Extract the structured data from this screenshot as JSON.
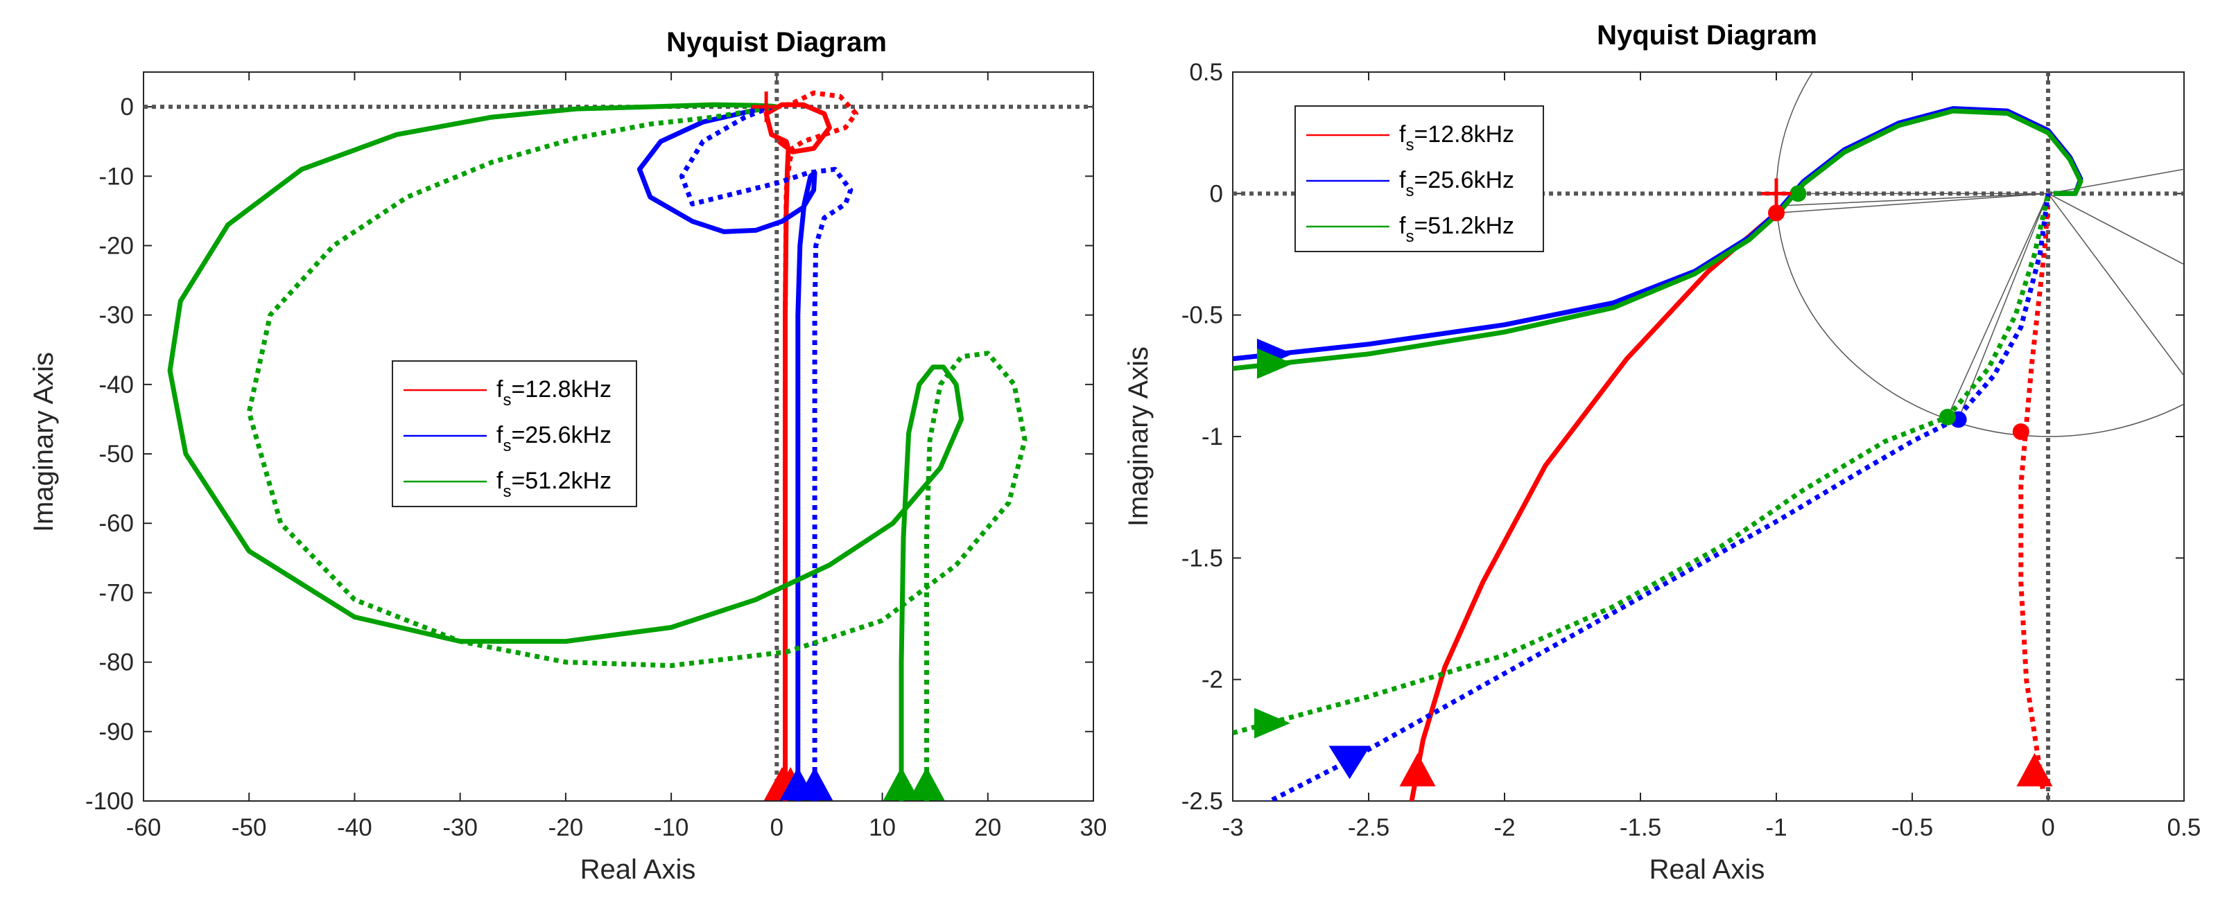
{
  "chart_data": [
    {
      "type": "line",
      "title": "Nyquist Diagram",
      "xlabel": "Real Axis",
      "ylabel": "Imaginary Axis",
      "xlim": [
        -60,
        30
      ],
      "ylim": [
        -100,
        5
      ],
      "xticks": [
        -60,
        -50,
        -40,
        -30,
        -20,
        -10,
        0,
        10,
        20,
        30
      ],
      "yticks": [
        0,
        -10,
        -20,
        -30,
        -40,
        -50,
        -60,
        -70,
        -80,
        -90,
        -100
      ],
      "xtick_labels": [
        "-60",
        "-50",
        "-40",
        "-30",
        "-20",
        "-10",
        "0",
        "10",
        "20",
        "30"
      ],
      "ytick_labels": [
        "0",
        "-10",
        "-20",
        "-30",
        "-40",
        "-50",
        "-60",
        "-70",
        "-80",
        "-90",
        "-100"
      ],
      "grid": false,
      "legend_placement": "center",
      "legend": [
        {
          "label_main": "f",
          "label_sub": "s",
          "label_rest": "=12.8kHz",
          "color": "#ff0000"
        },
        {
          "label_main": "f",
          "label_sub": "s",
          "label_rest": "=25.6kHz",
          "color": "#0000ff"
        },
        {
          "label_main": "f",
          "label_sub": "s",
          "label_rest": "=51.2kHz",
          "color": "#00a000"
        }
      ],
      "critical_point": [
        -1,
        0
      ],
      "series": [
        {
          "color": "#ff0000",
          "style": "solid",
          "x": [
            0.8,
            0.8,
            0.8,
            0.9,
            1.0,
            1.1,
            0.9,
            -0.5,
            -1.0,
            0.5,
            2.5,
            4.5,
            5.0,
            3.5,
            1.5,
            0.2
          ],
          "y": [
            -100,
            -60,
            -30,
            -15,
            -9,
            -6,
            -5,
            -4,
            -1,
            0.3,
            0.3,
            -1,
            -3,
            -6,
            -6.5,
            -5
          ]
        },
        {
          "color": "#ff0000",
          "style": "dotted",
          "x": [
            0.8,
            0.8,
            0.8,
            0.9,
            1.2,
            1.5,
            2.5,
            4.5,
            6.5,
            7.5,
            6.0,
            3.5,
            1.5,
            0.2
          ],
          "y": [
            -100,
            -60,
            -30,
            -12,
            -8,
            -6,
            -5,
            -4,
            -3,
            -1,
            1.5,
            2,
            0.5,
            0
          ]
        },
        {
          "color": "#0000ff",
          "style": "solid",
          "x": [
            2.0,
            2.0,
            2.0,
            2.2,
            2.6,
            3.2,
            3.6,
            3.5,
            2.5,
            0.5,
            -2,
            -5,
            -8,
            -12,
            -13,
            -11,
            -7,
            -3,
            -0.5
          ],
          "y": [
            -100,
            -60,
            -30,
            -20,
            -14,
            -10,
            -9.5,
            -12,
            -14.5,
            -16.5,
            -17.8,
            -18,
            -16.5,
            -13,
            -9,
            -5,
            -2.2,
            -0.8,
            0
          ]
        },
        {
          "color": "#0000ff",
          "style": "dotted",
          "x": [
            3.6,
            3.6,
            3.6,
            3.7,
            4.5,
            6.5,
            7.0,
            5.5,
            3.0,
            0,
            -4,
            -8,
            -9,
            -7,
            -3,
            -0.5
          ],
          "y": [
            -100,
            -60,
            -30,
            -20,
            -16,
            -14,
            -12,
            -9,
            -9.5,
            -11,
            -12.5,
            -14,
            -10,
            -5,
            -1.5,
            0
          ]
        },
        {
          "color": "#00a000",
          "style": "solid",
          "x": [
            11.8,
            11.8,
            12.0,
            12.5,
            13.5,
            14.8,
            15.8,
            17.0,
            17.5,
            15.5,
            11.0,
            5.0,
            -2.0,
            -10,
            -20,
            -30,
            -40,
            -50,
            -56,
            -57.5,
            -56.5,
            -52,
            -45,
            -36,
            -27,
            -19,
            -12,
            -6,
            -2,
            -0.5,
            0
          ],
          "y": [
            -100,
            -80,
            -62,
            -47,
            -40,
            -37.5,
            -37.5,
            -40,
            -45,
            -52,
            -60,
            -66,
            -71,
            -75,
            -77,
            -77,
            -73.5,
            -64,
            -50,
            -38,
            -28,
            -17,
            -9,
            -4,
            -1.5,
            -0.3,
            0,
            0.3,
            0.2,
            0.1,
            0
          ]
        },
        {
          "color": "#00a000",
          "style": "dotted",
          "x": [
            14.2,
            14.2,
            14.2,
            14.5,
            15.5,
            17.5,
            20.0,
            22.5,
            23.5,
            22.0,
            17.0,
            10.0,
            1.0,
            -10,
            -20,
            -30,
            -40,
            -47,
            -50,
            -48,
            -42,
            -35,
            -27,
            -19,
            -12,
            -6,
            -2,
            0
          ],
          "y": [
            -100,
            -80,
            -62,
            -48,
            -40,
            -36,
            -35.5,
            -40,
            -48,
            -57,
            -66,
            -74,
            -78.5,
            -80.5,
            -80,
            -77,
            -71,
            -60,
            -44,
            -30,
            -20,
            -13,
            -8,
            -4.5,
            -2.5,
            -1.5,
            -0.5,
            0
          ]
        }
      ],
      "arrows": [
        {
          "color": "#ff0000",
          "x": 0.5,
          "y": -98.5,
          "direction": "up"
        },
        {
          "color": "#ff0000",
          "x": 1.3,
          "y": -98.5,
          "direction": "up"
        },
        {
          "color": "#0000ff",
          "x": 2.0,
          "y": -98.5,
          "direction": "up"
        },
        {
          "color": "#0000ff",
          "x": 3.6,
          "y": -98.5,
          "direction": "up"
        },
        {
          "color": "#00a000",
          "x": 11.8,
          "y": -98.5,
          "direction": "up"
        },
        {
          "color": "#00a000",
          "x": 14.2,
          "y": -98.5,
          "direction": "up"
        }
      ]
    },
    {
      "type": "line",
      "title": "Nyquist Diagram",
      "xlabel": "Real Axis",
      "ylabel": "Imaginary Axis",
      "xlim": [
        -3,
        0.5
      ],
      "ylim": [
        -2.5,
        0.5
      ],
      "xticks": [
        -3,
        -2.5,
        -2,
        -1.5,
        -1,
        -0.5,
        0,
        0.5
      ],
      "yticks": [
        0.5,
        0,
        -0.5,
        -1,
        -1.5,
        -2,
        -2.5
      ],
      "xtick_labels": [
        "-3",
        "-2.5",
        "-2",
        "-1.5",
        "-1",
        "-0.5",
        "0",
        "0.5"
      ],
      "ytick_labels": [
        "0.5",
        "0",
        "-0.5",
        "-1",
        "-1.5",
        "-2",
        "-2.5"
      ],
      "grid": false,
      "legend_placement": "top-left",
      "legend": [
        {
          "label_main": "f",
          "label_sub": "s",
          "label_rest": "=12.8kHz",
          "color": "#ff0000"
        },
        {
          "label_main": "f",
          "label_sub": "s",
          "label_rest": "=25.6kHz",
          "color": "#0000ff"
        },
        {
          "label_main": "f",
          "label_sub": "s",
          "label_rest": "=51.2kHz",
          "color": "#00a000"
        }
      ],
      "critical_point": [
        -1,
        0
      ],
      "unit_circle": true,
      "series": [
        {
          "color": "#ff0000",
          "style": "solid",
          "x": [
            -2.35,
            -2.3,
            -2.22,
            -2.08,
            -1.85,
            -1.55,
            -1.25,
            -1.0
          ],
          "y": [
            -2.55,
            -2.25,
            -1.95,
            -1.6,
            -1.12,
            -0.68,
            -0.32,
            -0.08
          ]
        },
        {
          "color": "#ff0000",
          "style": "dotted",
          "x": [
            -0.02,
            -0.08,
            -0.1,
            -0.1,
            -0.08,
            -0.06,
            -0.04,
            -0.01,
            0
          ],
          "y": [
            -2.45,
            -2.0,
            -1.6,
            -1.2,
            -0.95,
            -0.7,
            -0.5,
            -0.2,
            0
          ]
        },
        {
          "color": "#0000ff",
          "style": "solid",
          "x": [
            -3.0,
            -2.5,
            -2.0,
            -1.6,
            -1.3,
            -1.1,
            -1.0,
            -0.9,
            -0.75,
            -0.55,
            -0.35,
            -0.15,
            0.0,
            0.08,
            0.12,
            0.1,
            0.05,
            0.02
          ],
          "y": [
            -0.68,
            -0.62,
            -0.54,
            -0.45,
            -0.32,
            -0.18,
            -0.08,
            0.05,
            0.18,
            0.29,
            0.35,
            0.34,
            0.26,
            0.15,
            0.06,
            0.0,
            0.0,
            0.0
          ]
        },
        {
          "color": "#0000ff",
          "style": "dotted",
          "x": [
            -2.95,
            -2.6,
            -2.2,
            -1.8,
            -1.4,
            -1.0,
            -0.7,
            -0.5,
            -0.34,
            -0.2,
            -0.1,
            -0.03,
            0
          ],
          "y": [
            -2.55,
            -2.35,
            -2.1,
            -1.85,
            -1.6,
            -1.35,
            -1.15,
            -1.02,
            -0.93,
            -0.75,
            -0.55,
            -0.25,
            0
          ]
        },
        {
          "color": "#00a000",
          "style": "solid",
          "x": [
            -3.0,
            -2.5,
            -2.0,
            -1.6,
            -1.3,
            -1.1,
            -1.0,
            -0.9,
            -0.75,
            -0.55,
            -0.35,
            -0.15,
            0.0,
            0.08,
            0.12,
            0.1,
            0.05,
            0.02
          ],
          "y": [
            -0.72,
            -0.66,
            -0.57,
            -0.47,
            -0.33,
            -0.19,
            -0.09,
            0.04,
            0.17,
            0.28,
            0.34,
            0.33,
            0.25,
            0.14,
            0.05,
            0.0,
            0.0,
            0.0
          ]
        },
        {
          "color": "#00a000",
          "style": "dotted",
          "x": [
            -3.0,
            -2.5,
            -2.0,
            -1.6,
            -1.2,
            -0.9,
            -0.6,
            -0.37,
            -0.22,
            -0.12,
            -0.05,
            0
          ],
          "y": [
            -2.22,
            -2.07,
            -1.9,
            -1.7,
            -1.45,
            -1.22,
            -1.02,
            -0.92,
            -0.72,
            -0.5,
            -0.25,
            0
          ]
        }
      ],
      "markers": [
        {
          "color": "#ff0000",
          "x": -1.0,
          "y": -0.08
        },
        {
          "color": "#ff0000",
          "x": -0.1,
          "y": -0.98
        },
        {
          "color": "#0000ff",
          "x": -0.33,
          "y": -0.93
        },
        {
          "color": "#00a000",
          "x": -0.92,
          "y": 0.0
        },
        {
          "color": "#00a000",
          "x": -0.37,
          "y": -0.92
        }
      ],
      "arrows": [
        {
          "color": "#0000ff",
          "x": -2.87,
          "y": -0.66,
          "direction": "right"
        },
        {
          "color": "#00a000",
          "x": -2.87,
          "y": -0.7,
          "direction": "right"
        },
        {
          "color": "#00a000",
          "x": -2.88,
          "y": -2.18,
          "direction": "right"
        },
        {
          "color": "#0000ff",
          "x": -2.57,
          "y": -2.33,
          "direction": "down"
        },
        {
          "color": "#ff0000",
          "x": -2.32,
          "y": -2.4,
          "direction": "up"
        },
        {
          "color": "#ff0000",
          "x": -0.05,
          "y": -2.4,
          "direction": "up"
        }
      ]
    }
  ]
}
